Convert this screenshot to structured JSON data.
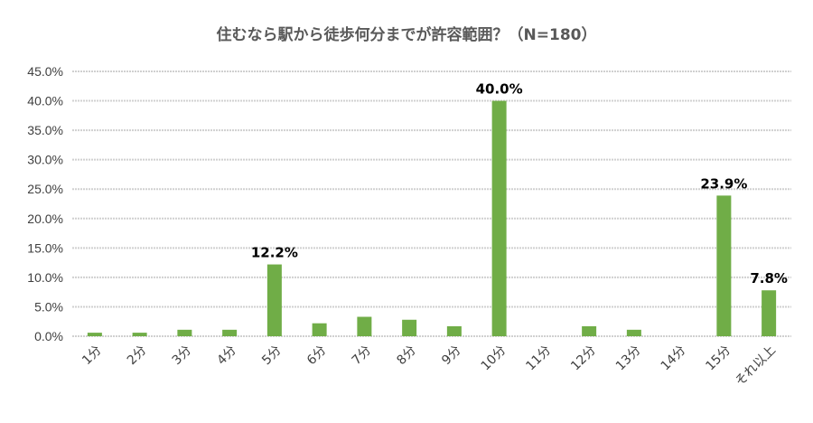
{
  "chart_data": {
    "type": "bar",
    "title": "住むなら駅から徒歩何分までが許容範囲？（N=180）",
    "categories": [
      "1分",
      "2分",
      "3分",
      "4分",
      "5分",
      "6分",
      "7分",
      "8分",
      "9分",
      "10分",
      "11分",
      "12分",
      "13分",
      "14分",
      "15分",
      "それ以上"
    ],
    "values": [
      0.6,
      0.6,
      1.1,
      1.1,
      12.2,
      2.2,
      3.3,
      2.8,
      1.7,
      40.0,
      0,
      1.7,
      1.1,
      0,
      23.9,
      7.8
    ],
    "data_labels": {
      "4": "12.2%",
      "9": "40.0%",
      "14": "23.9%",
      "15": "7.8%"
    },
    "y_ticks": [
      "0.0%",
      "5.0%",
      "10.0%",
      "15.0%",
      "20.0%",
      "25.0%",
      "30.0%",
      "35.0%",
      "40.0%",
      "45.0%"
    ],
    "ylim": [
      0,
      45
    ],
    "grid": true,
    "bar_color": "#70ad47",
    "grid_color": "#d0d0d0"
  }
}
